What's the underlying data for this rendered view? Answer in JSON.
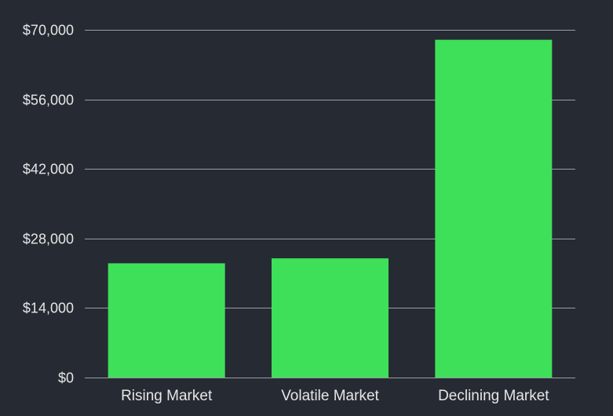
{
  "chart_data": {
    "type": "bar",
    "title": "",
    "xlabel": "",
    "ylabel": "",
    "categories": [
      "Rising Market",
      "Volatile Market",
      "Declining Market"
    ],
    "values": [
      23000,
      24000,
      68000
    ],
    "ylim": [
      0,
      70000
    ],
    "yticks": [
      0,
      14000,
      28000,
      42000,
      56000,
      70000
    ],
    "ytick_labels": [
      "$0",
      "$14,000",
      "$28,000",
      "$42,000",
      "$56,000",
      "$70,000"
    ],
    "grid": true,
    "legend": "none",
    "colors": {
      "background": "#262a33",
      "bar": "#3de058",
      "grid": "#9a9da3",
      "text": "#e6e6e6"
    }
  }
}
